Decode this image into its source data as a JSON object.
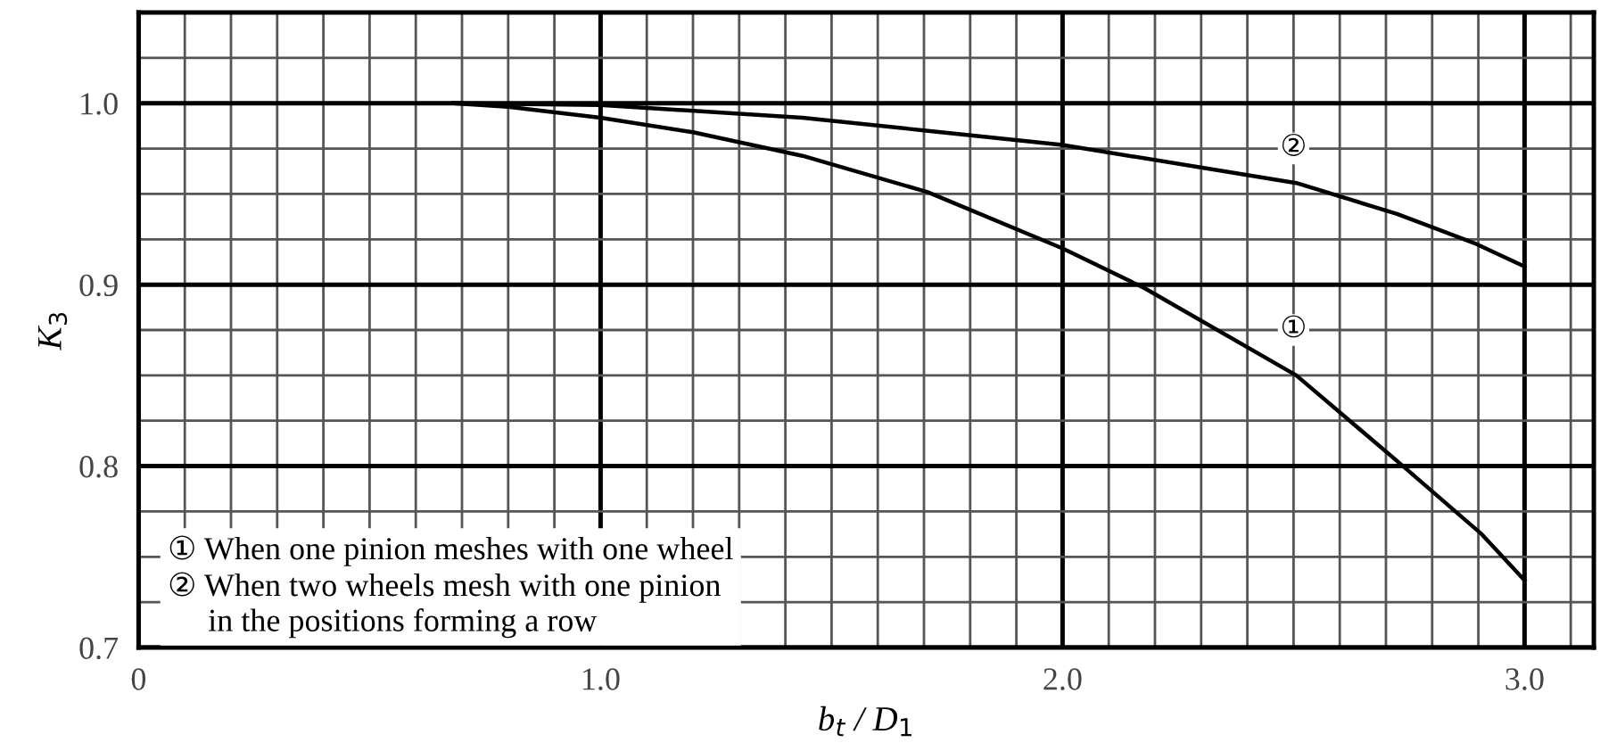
{
  "chart_data": {
    "type": "line",
    "xlabel": "b$_{t}$ / D$_{1}$",
    "ylabel": "K$_{3}$",
    "series": [
      {
        "color": "#000000",
        "x": [
          0.68,
          0.8,
          1.0,
          1.2,
          1.437,
          1.708,
          2.0,
          2.178,
          2.506,
          2.737,
          2.905,
          3.0
        ],
        "values": [
          1.0,
          0.998,
          0.992,
          0.984,
          0.971,
          0.951,
          0.92,
          0.898,
          0.85,
          0.8,
          0.763,
          0.737
        ]
      },
      {
        "color": "#000000",
        "x": [
          0.68,
          1.0,
          1.437,
          1.7,
          2.0,
          2.506,
          2.724,
          2.89,
          3.0
        ],
        "values": [
          1.0,
          0.999,
          0.992,
          0.985,
          0.977,
          0.956,
          0.939,
          0.923,
          0.91
        ]
      }
    ],
    "annotations": [
      {
        "text": "①",
        "x": 2.5,
        "y": 0.875
      },
      {
        "text": "②",
        "x": 2.5,
        "y": 0.975
      },
      "① When one pinion meshes with one wheel",
      "② When two wheels mesh with one pinion\n     in the positions forming a row"
    ],
    "xlim": [
      0,
      3.15
    ],
    "ylim": [
      0.7,
      1.05
    ],
    "xticks": [
      0,
      {
        "value": 1.0,
        "label": "1.0"
      },
      {
        "value": 2.0,
        "label": "2.0"
      },
      {
        "value": 3.0,
        "label": "3.0"
      }
    ],
    "yticks": [
      0.7,
      0.8,
      0.9,
      {
        "value": 1.0,
        "label": "1.0"
      }
    ],
    "grid": true,
    "legend": false,
    "marker": "none",
    "line_style": "solid"
  }
}
